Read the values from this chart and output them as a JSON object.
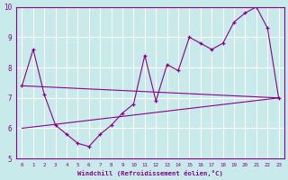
{
  "xlabel": "Windchill (Refroidissement éolien,°C)",
  "bg_color": "#c8eaea",
  "grid_color": "#ffffff",
  "line_color": "#8b008b",
  "xlim": [
    -0.5,
    23.5
  ],
  "ylim": [
    5,
    10
  ],
  "yticks": [
    5,
    6,
    7,
    8,
    9,
    10
  ],
  "xticks": [
    0,
    1,
    2,
    3,
    4,
    5,
    6,
    7,
    8,
    9,
    10,
    11,
    12,
    13,
    14,
    15,
    16,
    17,
    18,
    19,
    20,
    21,
    22,
    23
  ],
  "line1_x": [
    0,
    1,
    2,
    3,
    4,
    5,
    6,
    7,
    8,
    9,
    10,
    11,
    12,
    13,
    14,
    15,
    16,
    17,
    18,
    19,
    20,
    21,
    22,
    23
  ],
  "line1_y": [
    7.4,
    8.6,
    7.1,
    6.1,
    5.8,
    5.5,
    5.4,
    5.8,
    6.1,
    6.5,
    6.8,
    8.4,
    6.9,
    8.1,
    7.9,
    9.0,
    8.8,
    8.6,
    8.8,
    9.5,
    9.8,
    10.0,
    9.3,
    7.0
  ],
  "line2_x": [
    0,
    23
  ],
  "line2_y": [
    7.4,
    7.0
  ],
  "line3_x": [
    0,
    23
  ],
  "line3_y": [
    6.0,
    7.0
  ]
}
